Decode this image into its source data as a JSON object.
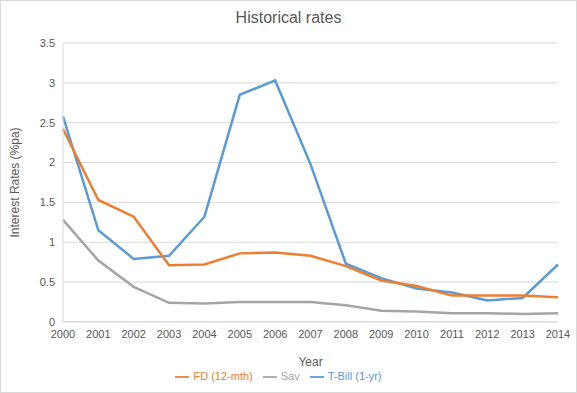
{
  "chart_data": {
    "type": "line",
    "title": "Historical rates",
    "x_label": "Year",
    "y_label": "Interest Rates (%pa)",
    "categories": [
      "2000",
      "2001",
      "2002",
      "2003",
      "2004",
      "2005",
      "2006",
      "2007",
      "2008",
      "2009",
      "2010",
      "2011",
      "2012",
      "2013",
      "2014"
    ],
    "series": [
      {
        "name": "T-Bill (1-yr)",
        "color": "#5b9bd5",
        "values": [
          2.58,
          1.15,
          0.79,
          0.83,
          1.32,
          2.85,
          3.03,
          1.98,
          0.73,
          0.55,
          0.42,
          0.37,
          0.27,
          0.3,
          0.72
        ]
      },
      {
        "name": "FD (12-mth)",
        "color": "#ed7d31",
        "values": [
          2.42,
          1.53,
          1.32,
          0.71,
          0.72,
          0.86,
          0.87,
          0.83,
          0.7,
          0.52,
          0.45,
          0.33,
          0.33,
          0.33,
          0.31
        ]
      },
      {
        "name": "Sav",
        "color": "#a5a5a5",
        "values": [
          1.28,
          0.77,
          0.44,
          0.24,
          0.23,
          0.25,
          0.25,
          0.25,
          0.21,
          0.14,
          0.13,
          0.11,
          0.11,
          0.1,
          0.11
        ]
      }
    ],
    "ylim": [
      0,
      3.5
    ],
    "yticks": [
      0,
      0.5,
      1,
      1.5,
      2,
      2.5,
      3,
      3.5
    ],
    "grid": true,
    "legend": "bottom"
  }
}
